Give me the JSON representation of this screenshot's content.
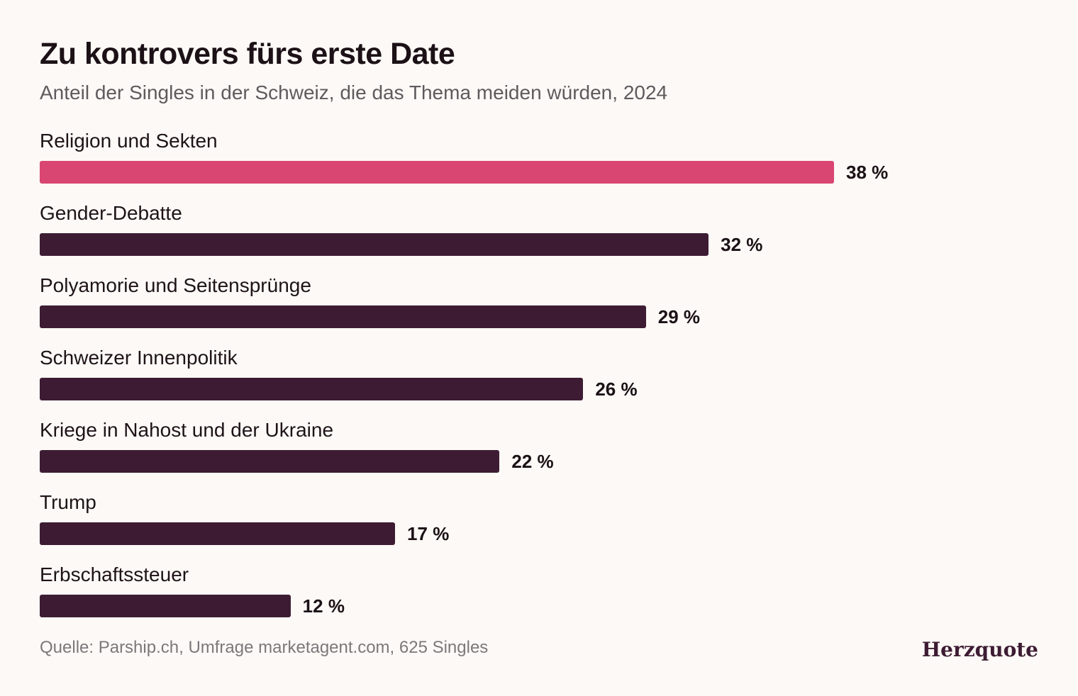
{
  "header": {
    "title": "Zu kontrovers fürs erste Date",
    "subtitle": "Anteil der Singles in der Schweiz, die das Thema meiden würden, 2024"
  },
  "footer": {
    "source": "Quelle: Parship.ch, Umfrage marketagent.com, 625 Singles",
    "brand": "Herzquote"
  },
  "colors": {
    "highlight": "#d94672",
    "default": "#3d1c33"
  },
  "chart_data": {
    "type": "bar",
    "orientation": "horizontal",
    "title": "Zu kontrovers fürs erste Date",
    "subtitle": "Anteil der Singles in der Schweiz, die das Thema meiden würden, 2024",
    "categories": [
      "Religion und Sekten",
      "Gender-Debatte",
      "Polyamorie und Seitensprünge",
      "Schweizer Innenpolitik",
      "Kriege in Nahost und der Ukraine",
      "Trump",
      "Erbschaftssteuer"
    ],
    "values": [
      38,
      32,
      29,
      26,
      22,
      17,
      12
    ],
    "value_labels": [
      "38 %",
      "32 %",
      "29 %",
      "26 %",
      "22 %",
      "17 %",
      "12 %"
    ],
    "highlight_index": 0,
    "unit": "%",
    "grid": false
  }
}
